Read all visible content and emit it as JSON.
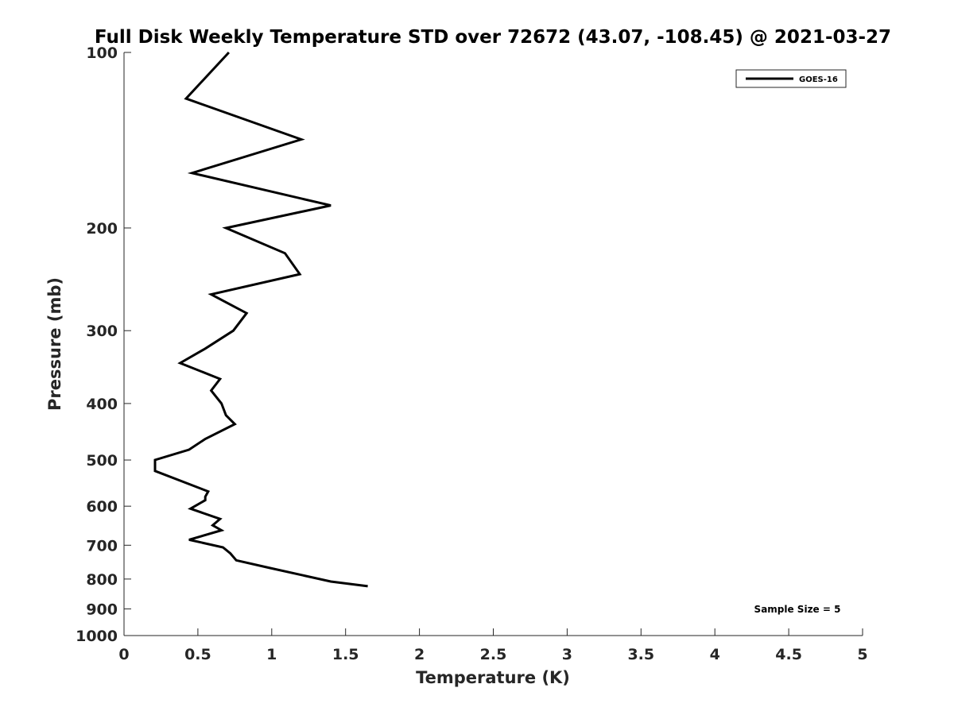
{
  "chart_data": {
    "type": "line",
    "title": "Full Disk Weekly Temperature STD over 72672 (43.07, -108.45) @ 2021-03-27",
    "xlabel": "Temperature (K)",
    "ylabel": "Pressure (mb)",
    "xlim": [
      0,
      5
    ],
    "ylim": [
      100,
      1000
    ],
    "y_scale": "log",
    "y_reversed": true,
    "grid": false,
    "legend_position": "top-right",
    "x_ticks": [
      0,
      0.5,
      1,
      1.5,
      2,
      2.5,
      3,
      3.5,
      4,
      4.5,
      5
    ],
    "x_tick_labels": [
      "0",
      "0.5",
      "1",
      "1.5",
      "2",
      "2.5",
      "3",
      "3.5",
      "4",
      "4.5",
      "5"
    ],
    "y_ticks": [
      100,
      200,
      300,
      400,
      500,
      600,
      700,
      800,
      900,
      1000
    ],
    "y_tick_labels": [
      "100",
      "200",
      "300",
      "400",
      "500",
      "600",
      "700",
      "800",
      "900",
      "1000"
    ],
    "series": [
      {
        "name": "GOES-16",
        "color": "#000000",
        "points": [
          {
            "x": 0.71,
            "y": 100
          },
          {
            "x": 0.42,
            "y": 120
          },
          {
            "x": 1.2,
            "y": 141
          },
          {
            "x": 0.46,
            "y": 161
          },
          {
            "x": 1.4,
            "y": 183
          },
          {
            "x": 0.69,
            "y": 200
          },
          {
            "x": 1.09,
            "y": 221
          },
          {
            "x": 1.19,
            "y": 240
          },
          {
            "x": 0.59,
            "y": 260
          },
          {
            "x": 0.83,
            "y": 280
          },
          {
            "x": 0.74,
            "y": 300
          },
          {
            "x": 0.55,
            "y": 322
          },
          {
            "x": 0.38,
            "y": 341
          },
          {
            "x": 0.65,
            "y": 363
          },
          {
            "x": 0.59,
            "y": 380
          },
          {
            "x": 0.66,
            "y": 400
          },
          {
            "x": 0.69,
            "y": 419
          },
          {
            "x": 0.75,
            "y": 434
          },
          {
            "x": 0.55,
            "y": 460
          },
          {
            "x": 0.44,
            "y": 480
          },
          {
            "x": 0.21,
            "y": 500
          },
          {
            "x": 0.21,
            "y": 522
          },
          {
            "x": 0.57,
            "y": 566
          },
          {
            "x": 0.55,
            "y": 578
          },
          {
            "x": 0.55,
            "y": 586
          },
          {
            "x": 0.45,
            "y": 606
          },
          {
            "x": 0.65,
            "y": 631
          },
          {
            "x": 0.6,
            "y": 647
          },
          {
            "x": 0.66,
            "y": 660
          },
          {
            "x": 0.44,
            "y": 685
          },
          {
            "x": 0.67,
            "y": 706
          },
          {
            "x": 0.72,
            "y": 723
          },
          {
            "x": 0.76,
            "y": 743
          },
          {
            "x": 0.98,
            "y": 765
          },
          {
            "x": 1.4,
            "y": 808
          },
          {
            "x": 1.65,
            "y": 823
          }
        ]
      }
    ],
    "annotation": "Sample Size = 5"
  }
}
